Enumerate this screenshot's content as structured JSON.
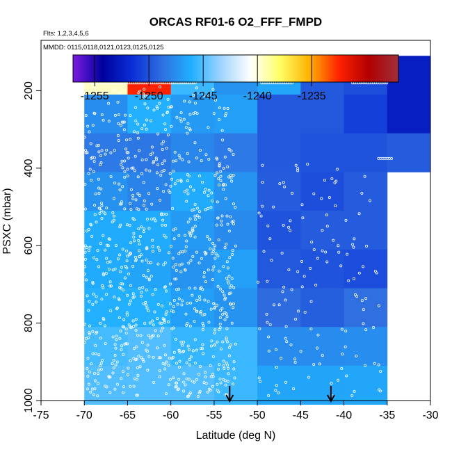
{
  "chart_data": {
    "type": "heatmap",
    "title": "ORCAS RF01-6 O2_FFF_FMPD",
    "subtitle_flights": "Flts: 1,2,3,4,5,6",
    "subtitle_dates": "MMDD: 0115,0118,0121,0123,0125,0125",
    "xlabel": "Latitude (deg N)",
    "ylabel": "PSXC (mbar)",
    "xlim": [
      -75,
      -30
    ],
    "ylim": [
      1000,
      70
    ],
    "y_reversed": true,
    "xticks": [
      -75,
      -70,
      -65,
      -60,
      -55,
      -50,
      -45,
      -40,
      -35,
      -30
    ],
    "yticks": [
      200,
      400,
      600,
      800,
      1000
    ],
    "colorbar": {
      "range": [
        -1257,
        -1227
      ],
      "ticks": [
        -1255,
        -1250,
        -1245,
        -1240,
        -1235
      ],
      "colors": [
        "#7a1be0",
        "#00009e",
        "#0a2ed6",
        "#2f6fe0",
        "#1fb0ff",
        "#9fd4ff",
        "#ffffff",
        "#ffff66",
        "#ffb000",
        "#ff2000",
        "#b00000",
        "#a0303a"
      ]
    },
    "grid_x": [
      -70,
      -65,
      -60,
      -55,
      -50,
      -45,
      -40,
      -35,
      -30
    ],
    "grid_p": [
      110,
      210,
      310,
      410,
      510,
      610,
      710,
      810,
      910,
      1010
    ],
    "cells": [
      [
        -1239.6,
        -1232.5,
        -1245.5,
        -1247.3,
        -1246.5,
        -1249.7,
        -1250.2,
        -1252.5
      ],
      [
        -1247.5,
        -1246.0,
        -1247.0,
        -1246.8,
        -1249.8,
        -1249.8,
        -1250.8,
        -1252.5
      ],
      [
        -1248.4,
        -1248.5,
        -1247.8,
        -1248.4,
        -1249.7,
        -1250.0,
        -1250.0,
        -1249.6
      ],
      [
        -1247.4,
        -1248.0,
        -1246.3,
        -1247.3,
        -1249.6,
        -1250.2,
        -1249.6,
        null
      ],
      [
        -1246.3,
        -1246.3,
        -1247.0,
        -1247.7,
        -1250.0,
        -1249.6,
        -1249.6,
        null
      ],
      [
        -1246.3,
        -1246.6,
        -1247.3,
        -1246.8,
        -1249.8,
        -1250.0,
        -1250.3,
        null
      ],
      [
        -1246.0,
        -1246.0,
        -1246.8,
        -1247.3,
        -1249.0,
        -1249.5,
        -1248.8,
        null
      ],
      [
        -1245.3,
        -1245.0,
        -1245.6,
        -1245.5,
        -1247.6,
        -1247.6,
        -1247.5,
        null
      ],
      [
        -1245.0,
        -1245.0,
        -1245.0,
        -1245.5,
        -1246.6,
        -1246.6,
        -1246.5,
        null
      ]
    ],
    "arrows_lat": [
      -53.2,
      -41.5
    ],
    "sample_count": 900
  }
}
